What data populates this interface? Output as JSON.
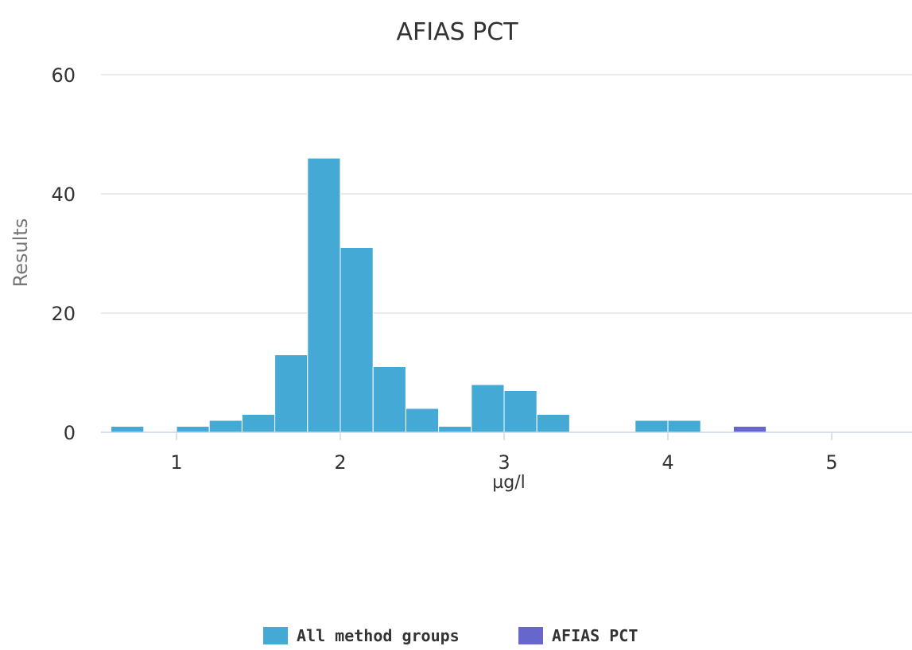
{
  "chart_data": {
    "type": "bar",
    "title": "AFIAS PCT",
    "xlabel": "µg/l",
    "ylabel": "Results",
    "x_ticks": [
      "1",
      "2",
      "3",
      "4",
      "5"
    ],
    "y_ticks": [
      "0",
      "20",
      "40",
      "60"
    ],
    "xlim": [
      0.55,
      5.5
    ],
    "ylim": [
      0,
      60
    ],
    "bin_width": 0.2,
    "grid": true,
    "legend_position": "bottom-center",
    "series": [
      {
        "name": "All method groups",
        "color": "#45a9d5",
        "bin_starts": [
          0.6,
          1.0,
          1.2,
          1.4,
          1.6,
          1.8,
          2.0,
          2.2,
          2.4,
          2.6,
          2.8,
          3.0,
          3.2,
          3.8,
          4.0
        ],
        "values": [
          1,
          1,
          2,
          3,
          13,
          46,
          31,
          11,
          4,
          1,
          8,
          7,
          3,
          2,
          2
        ]
      },
      {
        "name": "AFIAS PCT",
        "color": "#6666cc",
        "bin_starts": [
          4.4
        ],
        "values": [
          1
        ]
      }
    ]
  }
}
